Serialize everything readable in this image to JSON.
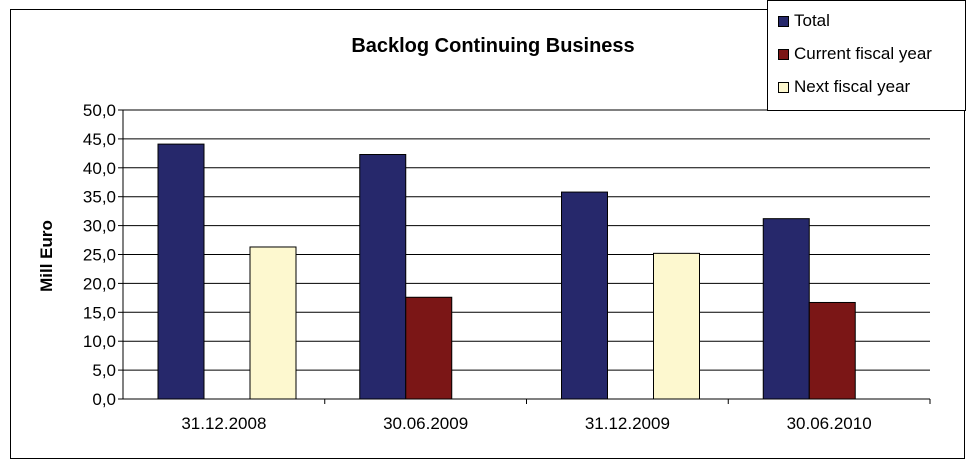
{
  "chart_data": {
    "type": "bar",
    "title": "Backlog Continuing Business",
    "xlabel": "",
    "ylabel": "Mill Euro",
    "categories": [
      "31.12.2008",
      "30.06.2009",
      "31.12.2009",
      "30.06.2010"
    ],
    "series": [
      {
        "name": "Total",
        "color": "#26286b",
        "values": [
          44.1,
          42.3,
          35.8,
          31.2
        ]
      },
      {
        "name": "Current fiscal year",
        "color": "#7b1616",
        "values": [
          null,
          17.6,
          null,
          16.7
        ]
      },
      {
        "name": "Next fiscal year",
        "color": "#fdf8cf",
        "values": [
          26.3,
          null,
          25.2,
          null
        ]
      }
    ],
    "ylim": [
      0,
      50
    ],
    "yticks": [
      "0,0",
      "5,0",
      "10,0",
      "15,0",
      "20,0",
      "25,0",
      "30,0",
      "35,0",
      "40,0",
      "45,0",
      "50,0"
    ],
    "grid": true,
    "legend_position": "top-right"
  }
}
